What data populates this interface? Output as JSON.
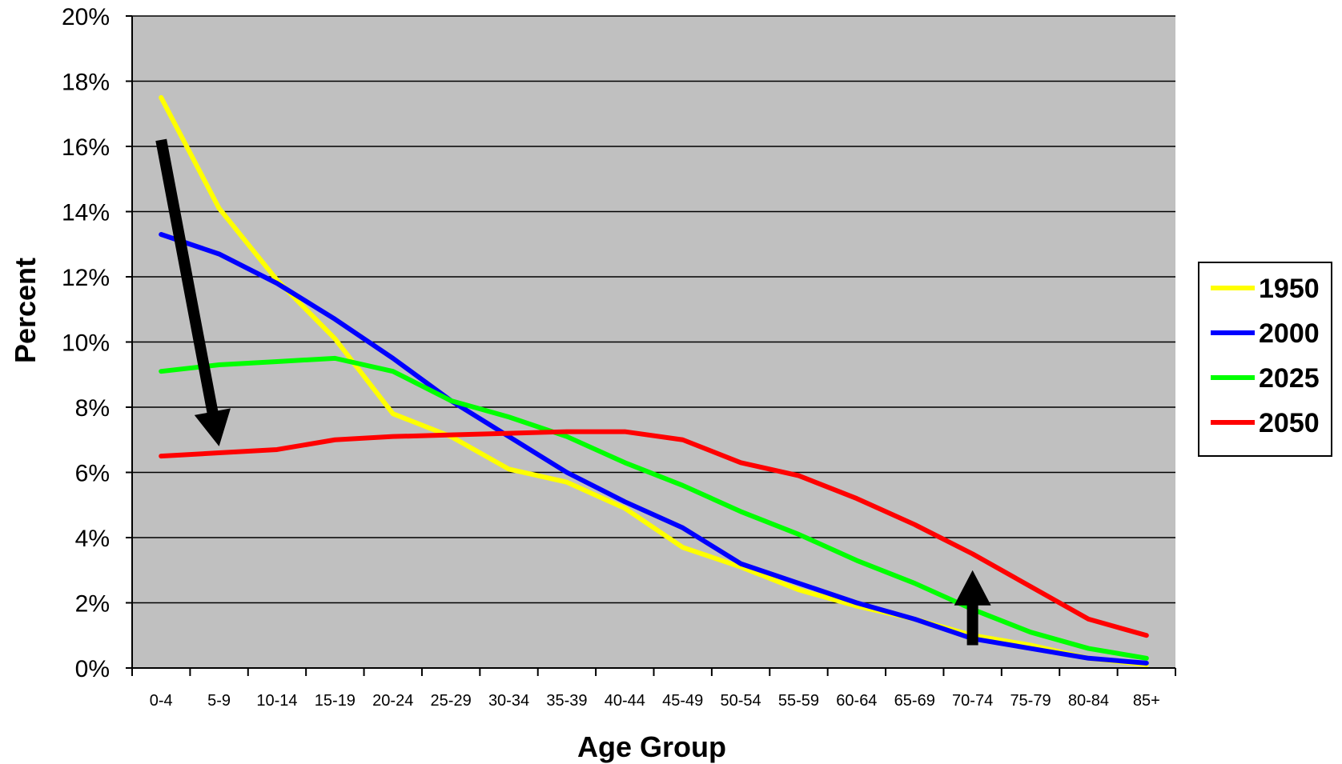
{
  "chart_data": {
    "type": "line",
    "xlabel": "Age Group",
    "ylabel": "Percent",
    "ylim": [
      0,
      20
    ],
    "yticks": [
      "0%",
      "2%",
      "4%",
      "6%",
      "8%",
      "10%",
      "12%",
      "14%",
      "16%",
      "18%",
      "20%"
    ],
    "categories": [
      "0-4",
      "5-9",
      "10-14",
      "15-19",
      "20-24",
      "25-29",
      "30-34",
      "35-39",
      "40-44",
      "45-49",
      "50-54",
      "55-59",
      "60-64",
      "65-69",
      "70-74",
      "75-79",
      "80-84",
      "85+"
    ],
    "series": [
      {
        "name": "1950",
        "color": "#ffff00",
        "values": [
          17.5,
          14.1,
          11.9,
          10.1,
          7.8,
          7.1,
          6.1,
          5.7,
          4.9,
          3.7,
          3.1,
          2.4,
          1.9,
          1.5,
          1.0,
          0.7,
          0.3,
          0.1
        ]
      },
      {
        "name": "2000",
        "color": "#0000ff",
        "values": [
          13.3,
          12.7,
          11.8,
          10.7,
          9.5,
          8.2,
          7.1,
          6.0,
          5.1,
          4.3,
          3.2,
          2.6,
          2.0,
          1.5,
          0.9,
          0.6,
          0.3,
          0.15
        ]
      },
      {
        "name": "2025",
        "color": "#00ff00",
        "values": [
          9.1,
          9.3,
          9.4,
          9.5,
          9.1,
          8.2,
          7.7,
          7.1,
          6.3,
          5.6,
          4.8,
          4.1,
          3.3,
          2.6,
          1.8,
          1.1,
          0.6,
          0.3
        ]
      },
      {
        "name": "2050",
        "color": "#ff0000",
        "values": [
          6.5,
          6.6,
          6.7,
          7.0,
          7.1,
          7.15,
          7.2,
          7.25,
          7.25,
          7.0,
          6.3,
          5.9,
          5.2,
          4.4,
          3.5,
          2.5,
          1.5,
          1.0
        ]
      }
    ],
    "grid": true,
    "legend": "right",
    "plot_background": "#c0c0c0",
    "annotations": [
      {
        "type": "arrow",
        "direction": "down",
        "from": {
          "x": "0-4",
          "y": 16.2
        },
        "to": {
          "x": "5-9",
          "y": 6.8
        },
        "color": "#000000"
      },
      {
        "type": "arrow",
        "direction": "up",
        "from": {
          "x": "70-74",
          "y": 0.7
        },
        "to": {
          "x": "70-74",
          "y": 3.0
        },
        "color": "#000000"
      }
    ]
  }
}
